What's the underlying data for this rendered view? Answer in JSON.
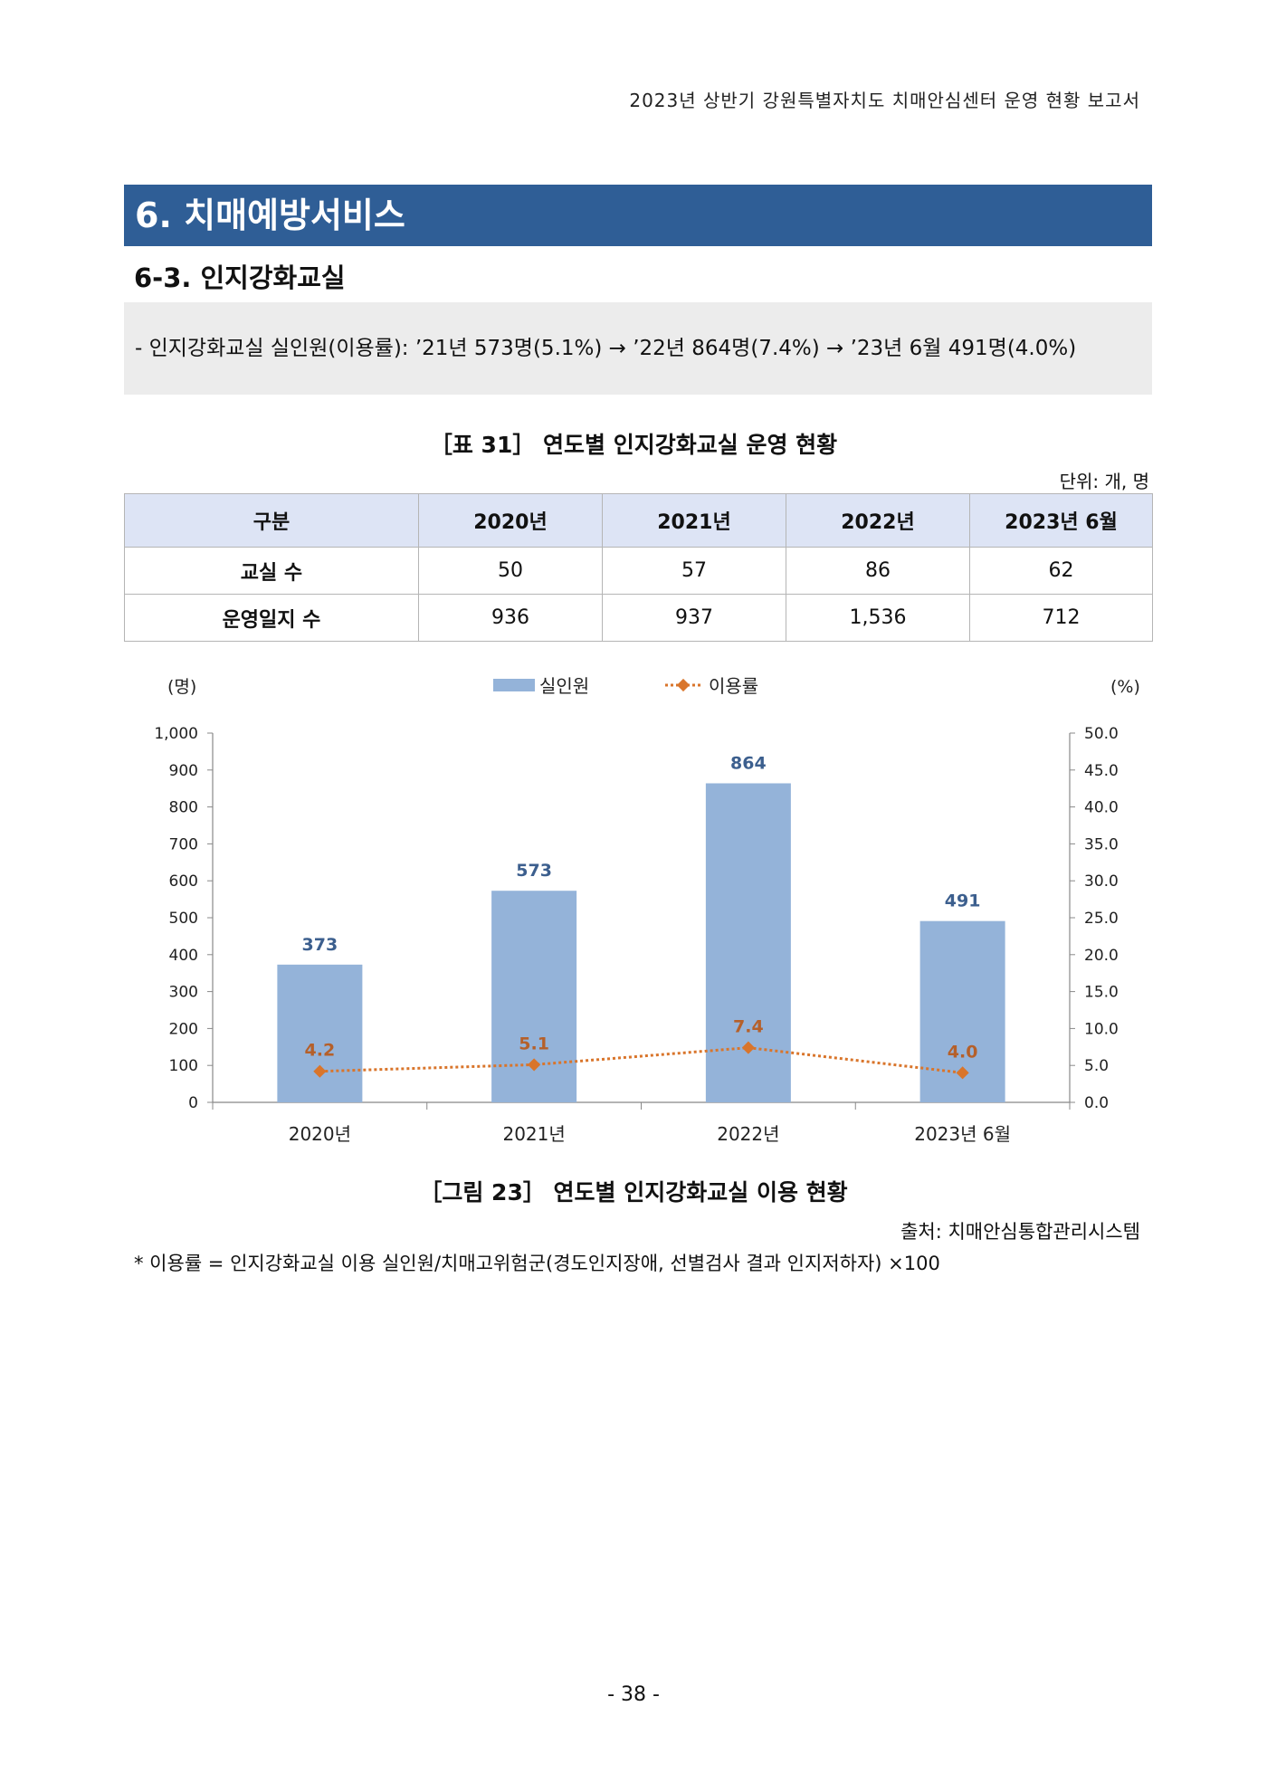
{
  "header": "2023년 상반기 강원특별자치도 치매안심센터 운영 현황 보고서",
  "section_title": "6. 치매예방서비스",
  "subsection_title": "6-3. 인지강화교실",
  "summary": "- 인지강화교실 실인원(이용률): ’21년 573명(5.1%) → ’22년 864명(7.4%) → ’23년 6월 491명(4.0%)",
  "table": {
    "title": "［표 31］ 연도별 인지강화교실 운영 현황",
    "unit": "단위: 개, 명",
    "headers": [
      "구분",
      "2020년",
      "2021년",
      "2022년",
      "2023년 6월"
    ],
    "rows": [
      [
        "교실 수",
        "50",
        "57",
        "86",
        "62"
      ],
      [
        "운영일지 수",
        "936",
        "937",
        "1,536",
        "712"
      ]
    ]
  },
  "chart_data": {
    "type": "bar",
    "categories": [
      "2020년",
      "2021년",
      "2022년",
      "2023년 6월"
    ],
    "series": [
      {
        "name": "실인원",
        "type": "bar",
        "axis": "left",
        "color": "#94b3d9",
        "values": [
          373,
          573,
          864,
          491
        ],
        "labels": [
          "373",
          "573",
          "864",
          "491"
        ]
      },
      {
        "name": "이용률",
        "type": "line",
        "axis": "right",
        "color": "#d9752b",
        "values": [
          4.2,
          5.1,
          7.4,
          4.0
        ],
        "labels": [
          "4.2",
          "5.1",
          "7.4",
          "4.0"
        ]
      }
    ],
    "ylabel": "(명)",
    "y2label": "(%)",
    "ylim": [
      0,
      1000
    ],
    "y2lim": [
      0,
      50
    ],
    "yticks": [
      "0",
      "100",
      "200",
      "300",
      "400",
      "500",
      "600",
      "700",
      "800",
      "900",
      "1,000"
    ],
    "y2ticks": [
      "0.0",
      "5.0",
      "10.0",
      "15.0",
      "20.0",
      "25.0",
      "30.0",
      "35.0",
      "40.0",
      "45.0",
      "50.0"
    ],
    "legend": "top-center",
    "grid": false
  },
  "figure_title": "［그림 23］ 연도별 인지강화교실 이용 현황",
  "source": "출처: 치매안심통합관리시스템",
  "footnote": "* 이용률 = 인지강화교실 이용 실인원/치매고위험군(경도인지장애, 선별검사 결과 인지저하자) ×100",
  "page_number": "- 38 -"
}
